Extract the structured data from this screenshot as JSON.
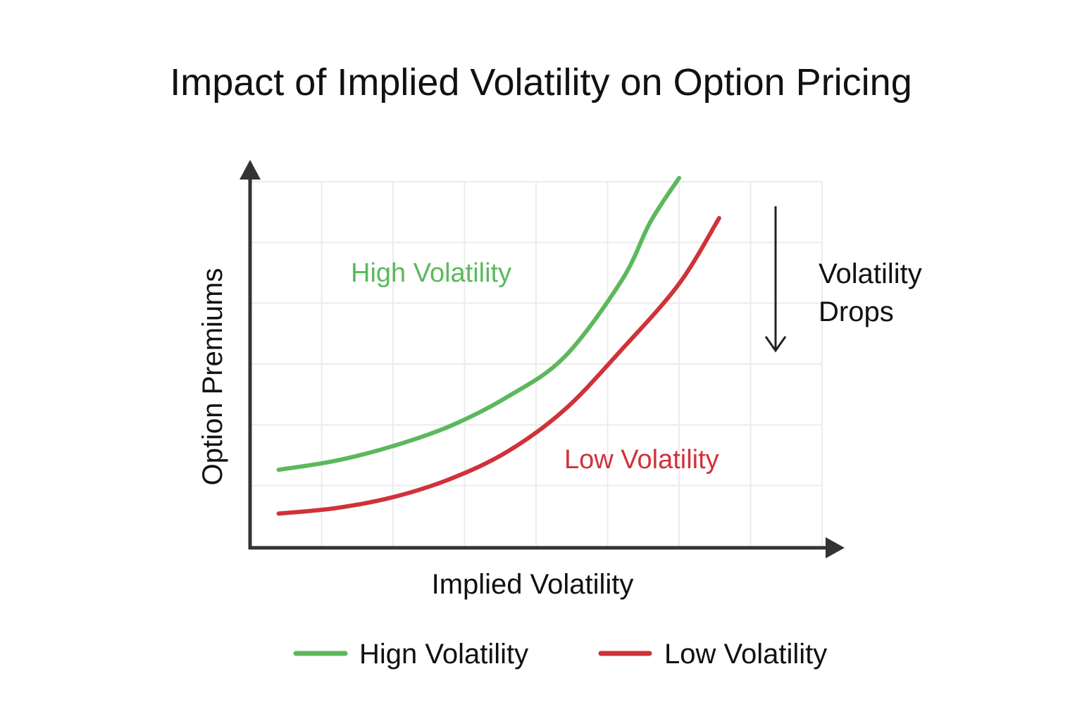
{
  "chart_data": {
    "type": "line",
    "title": "Impact of Implied Volatility on Option Pricing",
    "xlabel": "Implied Volatility",
    "ylabel": "Option Premiums",
    "xlim": [
      0,
      10
    ],
    "ylim": [
      0,
      10
    ],
    "grid": true,
    "series": [
      {
        "name": "High Volatility",
        "color": "#5cb85c",
        "label_text": "High Volatility",
        "x": [
          0.5,
          1.5,
          2.5,
          3.5,
          4.5,
          5.5,
          6.5,
          7.0,
          7.5
        ],
        "y": [
          2.1,
          2.35,
          2.75,
          3.3,
          4.1,
          5.2,
          7.3,
          8.9,
          10.1
        ]
      },
      {
        "name": "Low Volatility",
        "color": "#d0323a",
        "label_text": "Low Volatility",
        "x": [
          0.5,
          1.5,
          2.5,
          3.5,
          4.5,
          5.5,
          6.5,
          7.5,
          8.2
        ],
        "y": [
          0.9,
          1.05,
          1.35,
          1.85,
          2.6,
          3.75,
          5.4,
          7.2,
          9.0
        ]
      }
    ],
    "annotation": {
      "text_line1": "Volatility",
      "text_line2": "Drops",
      "arrow_direction": "down"
    },
    "legend": {
      "position": "bottom",
      "items": [
        {
          "label": "Hign Volatility",
          "color": "#5cb85c"
        },
        {
          "label": "Low Volatility",
          "color": "#d0323a"
        }
      ]
    }
  }
}
